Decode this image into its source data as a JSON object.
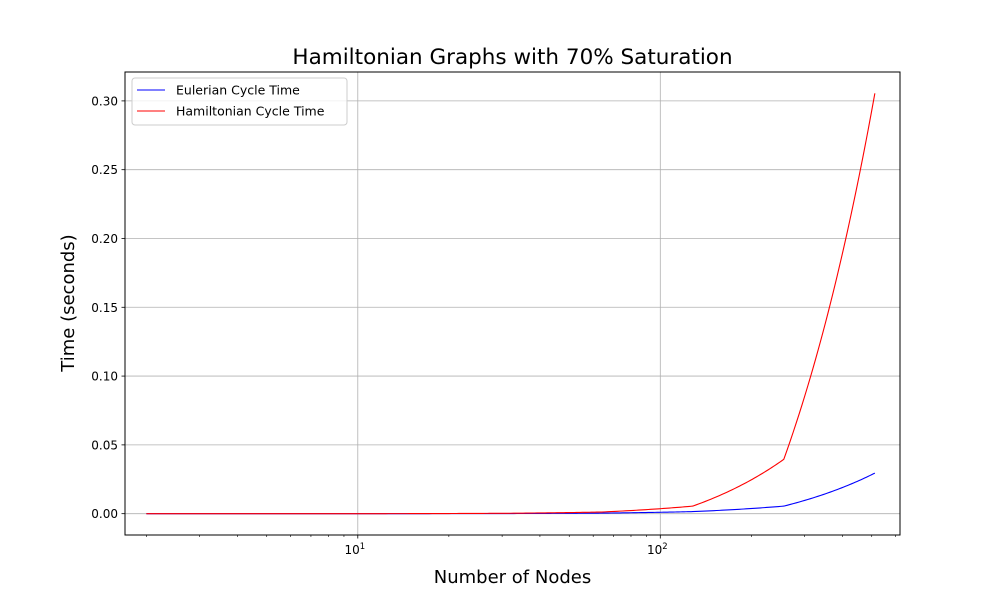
{
  "chart_data": {
    "type": "line",
    "title": "Hamiltonian Graphs with 70% Saturation",
    "xlabel": "Number of Nodes",
    "ylabel": "Time (seconds)",
    "xscale": "log",
    "xlim": [
      1.7,
      620
    ],
    "ylim": [
      -0.0155,
      0.321
    ],
    "x_major_ticks": [
      {
        "value": 10,
        "label_base": "10",
        "label_exp": "1"
      },
      {
        "value": 100,
        "label_base": "10",
        "label_exp": "2"
      }
    ],
    "y_ticks": [
      {
        "value": 0.0,
        "label": "0.00"
      },
      {
        "value": 0.05,
        "label": "0.05"
      },
      {
        "value": 0.1,
        "label": "0.10"
      },
      {
        "value": 0.15,
        "label": "0.15"
      },
      {
        "value": 0.2,
        "label": "0.20"
      },
      {
        "value": 0.25,
        "label": "0.25"
      },
      {
        "value": 0.3,
        "label": "0.30"
      }
    ],
    "grid": true,
    "legend_position": "top-left",
    "x": [
      2,
      4,
      8,
      16,
      32,
      64,
      128,
      256,
      512
    ],
    "series": [
      {
        "name": "Eulerian Cycle Time",
        "color": "#0000ff",
        "values": [
          0.0,
          0.0,
          0.0,
          2e-05,
          0.0001,
          0.0004,
          0.0015,
          0.0055,
          0.0295
        ]
      },
      {
        "name": "Hamiltonian Cycle Time",
        "color": "#ff0000",
        "values": [
          0.0,
          0.0,
          0.0,
          5e-05,
          0.0003,
          0.0012,
          0.0055,
          0.0395,
          0.3055
        ]
      }
    ]
  }
}
